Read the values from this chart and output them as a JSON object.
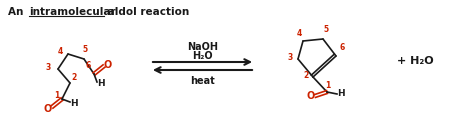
{
  "title_part1": "An ",
  "title_underline": "intramolecular",
  "title_part2": " aldol reaction",
  "bg_color": "#ffffff",
  "black": "#1a1a1a",
  "red": "#cc2200",
  "naoh_text": "NaOH",
  "h2o_text": "H₂O",
  "heat_text": "heat",
  "plus_h2o": "+ H₂O",
  "figsize": [
    4.74,
    1.37
  ],
  "dpi": 100
}
